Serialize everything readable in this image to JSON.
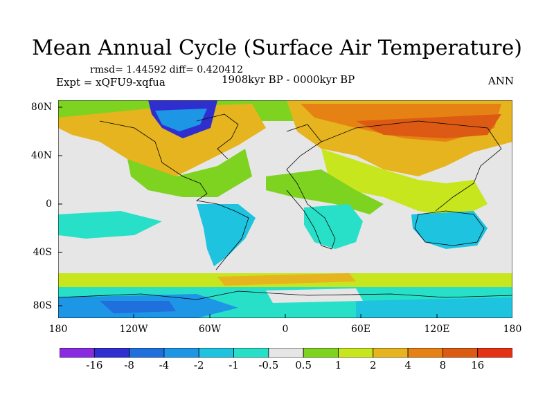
{
  "title": "Mean Annual Cycle (Surface Air Temperature)",
  "stats": "rmsd= 1.44592 diff= 0.420412",
  "experiment": "Expt = xQFU9-xqfua",
  "period": "1908kyr BP - 0000kyr BP",
  "season": "ANN",
  "y_axis_labels": [
    "80N",
    "40N",
    "0",
    "40S",
    "80S"
  ],
  "x_axis_labels": [
    "180",
    "120W",
    "60W",
    "0",
    "60E",
    "120E",
    "180"
  ],
  "colorbar": {
    "labels": [
      "-16",
      "-8",
      "-4",
      "-2",
      "-1",
      "-0.5",
      "0.5",
      "1",
      "2",
      "4",
      "8",
      "16"
    ],
    "colors": [
      "#8a2be2",
      "#2f2fd0",
      "#1f6fdc",
      "#1e96e6",
      "#1ec3e0",
      "#28e0c8",
      "#e6e6e6",
      "#7ed321",
      "#c8e61e",
      "#e6b41e",
      "#e68214",
      "#dc5a14",
      "#e63214"
    ]
  }
}
